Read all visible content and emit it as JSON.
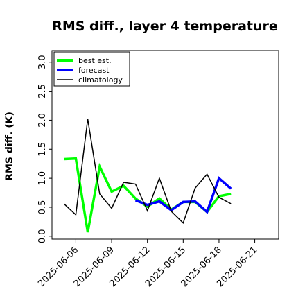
{
  "chart_data": {
    "type": "line",
    "title": "RMS diff., layer 4 temperature",
    "xlabel": "",
    "ylabel": "RMS diff. (K)",
    "ylim": [
      -0.05,
      3.2
    ],
    "yticks": [
      0.0,
      0.5,
      1.0,
      1.5,
      2.0,
      2.5,
      3.0
    ],
    "ytick_labels": [
      "0.0",
      "0.5",
      "1.0",
      "1.5",
      "2.0",
      "2.5",
      "3.0"
    ],
    "xlim": [
      "2025-06-04",
      "2025-06-23"
    ],
    "xticks": [
      "2025-06-06",
      "2025-06-09",
      "2025-06-12",
      "2025-06-15",
      "2025-06-18",
      "2025-06-21"
    ],
    "xtick_labels": [
      "2025-06-06",
      "2025-06-09",
      "2025-06-12",
      "2025-06-15",
      "2025-06-18",
      "2025-06-21"
    ],
    "highlighted_xtick": "2025-06-12",
    "highlight_color": "#228b22",
    "grid": false,
    "legend_position": "top-left",
    "series": [
      {
        "name": "best est.",
        "color": "#00ff00",
        "x": [
          "2025-06-05",
          "2025-06-06",
          "2025-06-07",
          "2025-06-08",
          "2025-06-09",
          "2025-06-10",
          "2025-06-11",
          "2025-06-12",
          "2025-06-13",
          "2025-06-14",
          "2025-06-15",
          "2025-06-16",
          "2025-06-17",
          "2025-06-18",
          "2025-06-19"
        ],
        "values": [
          1.33,
          1.34,
          0.07,
          1.2,
          0.77,
          0.87,
          0.65,
          0.51,
          0.65,
          0.46,
          0.59,
          0.59,
          0.42,
          0.69,
          0.73
        ]
      },
      {
        "name": "forecast",
        "color": "#0000ff",
        "x": [
          "2025-06-11",
          "2025-06-12",
          "2025-06-13",
          "2025-06-14",
          "2025-06-15",
          "2025-06-16",
          "2025-06-17",
          "2025-06-18",
          "2025-06-19"
        ],
        "values": [
          0.62,
          0.54,
          0.6,
          0.45,
          0.59,
          0.6,
          0.42,
          1.0,
          0.82
        ]
      },
      {
        "name": "climatology",
        "color": "#000000",
        "x": [
          "2025-06-05",
          "2025-06-06",
          "2025-06-07",
          "2025-06-08",
          "2025-06-09",
          "2025-06-10",
          "2025-06-11",
          "2025-06-12",
          "2025-06-13",
          "2025-06-14",
          "2025-06-15",
          "2025-06-16",
          "2025-06-17",
          "2025-06-18",
          "2025-06-19"
        ],
        "values": [
          0.56,
          0.37,
          2.02,
          0.73,
          0.48,
          0.93,
          0.9,
          0.44,
          1.0,
          0.43,
          0.23,
          0.83,
          1.07,
          0.67,
          0.56
        ]
      }
    ]
  }
}
